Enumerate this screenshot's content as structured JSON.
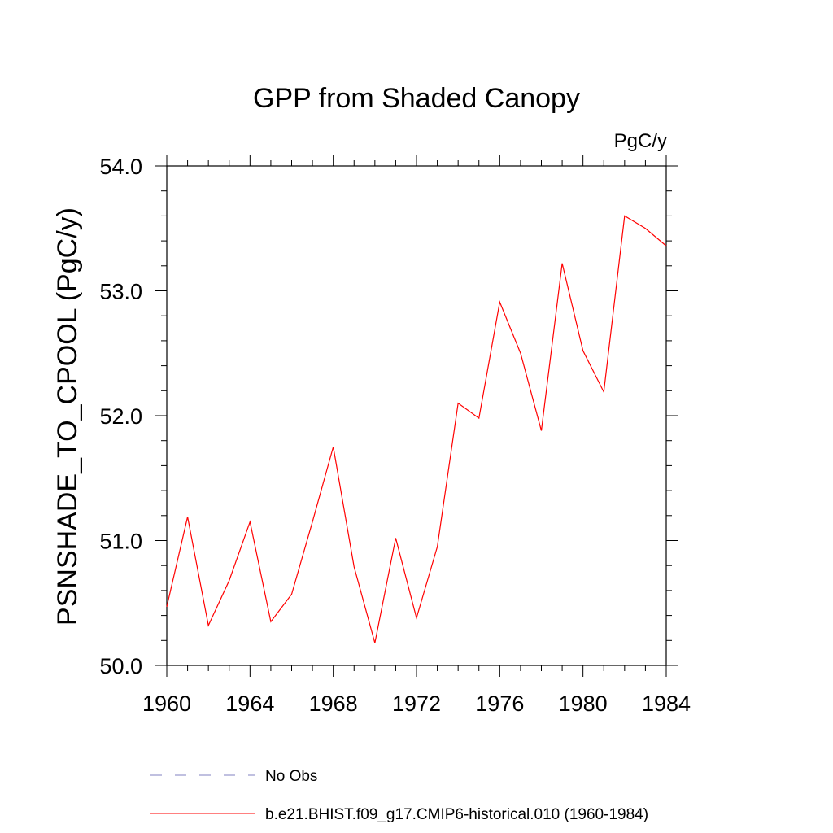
{
  "chart_data": {
    "type": "line",
    "title": "GPP from Shaded Canopy",
    "units_label": "PgC/y",
    "ylabel": "PSNSHADE_TO_CPOOL  (PgC/y)",
    "xlabel": "",
    "xlim": [
      1960,
      1984
    ],
    "ylim": [
      50.0,
      54.0
    ],
    "x_ticks": [
      "1960",
      "1964",
      "1968",
      "1972",
      "1976",
      "1980",
      "1984"
    ],
    "y_ticks": [
      "50.0",
      "51.0",
      "52.0",
      "53.0",
      "54.0"
    ],
    "grid": false,
    "series": [
      {
        "name": "b.e21.BHIST.f09_g17.CMIP6-historical.010 (1960-1984)",
        "color": "#ff0000",
        "x": [
          1960,
          1961,
          1962,
          1963,
          1964,
          1965,
          1966,
          1967,
          1968,
          1969,
          1970,
          1971,
          1972,
          1973,
          1974,
          1975,
          1976,
          1977,
          1978,
          1979,
          1980,
          1981,
          1982,
          1983,
          1984
        ],
        "values": [
          50.47,
          51.19,
          50.32,
          50.68,
          51.15,
          50.35,
          50.57,
          51.15,
          51.75,
          50.79,
          50.18,
          51.02,
          50.38,
          50.95,
          52.1,
          51.98,
          52.91,
          52.5,
          51.88,
          53.22,
          52.52,
          52.19,
          53.6,
          53.5,
          53.36
        ]
      }
    ],
    "legend": [
      {
        "label": "No Obs",
        "color": "#8080c0",
        "style": "dashed"
      },
      {
        "label": "b.e21.BHIST.f09_g17.CMIP6-historical.010 (1960-1984)",
        "color": "#ff0000",
        "style": "solid"
      }
    ],
    "legend_position": "bottom"
  }
}
